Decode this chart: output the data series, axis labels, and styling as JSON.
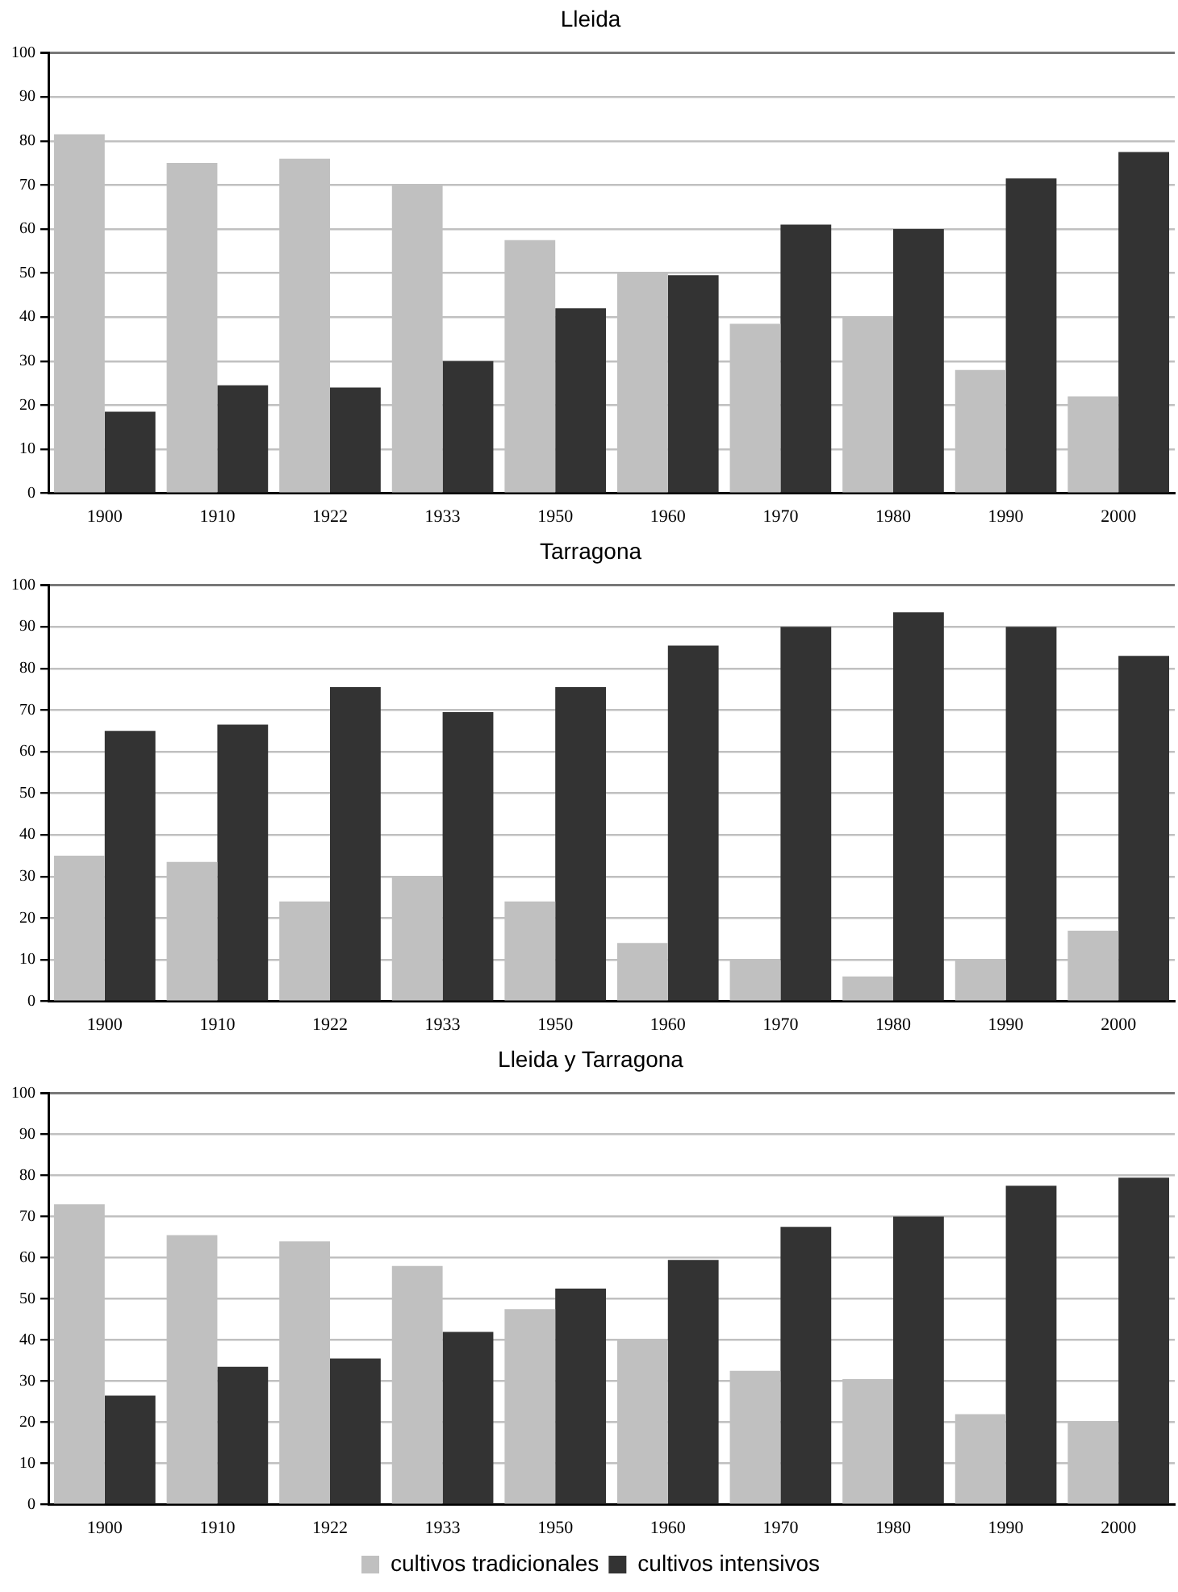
{
  "chart_data": [
    {
      "type": "bar",
      "title": "Lleida",
      "categories": [
        "1900",
        "1910",
        "1922",
        "1933",
        "1950",
        "1960",
        "1970",
        "1980",
        "1990",
        "2000"
      ],
      "series": [
        {
          "color": "#c0c0c0",
          "values": [
            81.5,
            75,
            76,
            70,
            57.5,
            50,
            38.5,
            40,
            28,
            22
          ]
        },
        {
          "color": "#333333",
          "values": [
            18.5,
            24.5,
            24,
            30,
            42,
            49.5,
            61,
            60,
            71.5,
            77.5
          ]
        }
      ],
      "ylim": [
        0,
        100
      ],
      "yticks": [
        0,
        10,
        20,
        30,
        40,
        50,
        60,
        70,
        80,
        90,
        100
      ],
      "grid": "y",
      "legend": false
    },
    {
      "type": "bar",
      "title": "Tarragona",
      "categories": [
        "1900",
        "1910",
        "1922",
        "1933",
        "1950",
        "1960",
        "1970",
        "1980",
        "1990",
        "2000"
      ],
      "series": [
        {
          "color": "#c0c0c0",
          "values": [
            35,
            33.5,
            24,
            30,
            24,
            14,
            10,
            6,
            10,
            17
          ]
        },
        {
          "color": "#333333",
          "values": [
            65,
            66.5,
            75.5,
            69.5,
            75.5,
            85.5,
            90,
            93.5,
            90,
            83
          ]
        }
      ],
      "ylim": [
        0,
        100
      ],
      "yticks": [
        0,
        10,
        20,
        30,
        40,
        50,
        60,
        70,
        80,
        90,
        100
      ],
      "grid": "y",
      "legend": false
    },
    {
      "type": "bar",
      "title": "Lleida y Tarragona",
      "categories": [
        "1900",
        "1910",
        "1922",
        "1933",
        "1950",
        "1960",
        "1970",
        "1980",
        "1990",
        "2000"
      ],
      "series": [
        {
          "name": "cultivos tradicionales",
          "color": "#c0c0c0",
          "values": [
            73,
            65.5,
            64,
            58,
            47.5,
            40,
            32.5,
            30.5,
            22,
            20
          ]
        },
        {
          "name": "cultivos intensivos",
          "color": "#333333",
          "values": [
            26.5,
            33.5,
            35.5,
            42,
            52.5,
            59.5,
            67.5,
            70,
            77.5,
            79.5
          ]
        }
      ],
      "ylim": [
        0,
        100
      ],
      "yticks": [
        0,
        10,
        20,
        30,
        40,
        50,
        60,
        70,
        80,
        90,
        100
      ],
      "grid": "y",
      "legend": "bottom"
    }
  ]
}
